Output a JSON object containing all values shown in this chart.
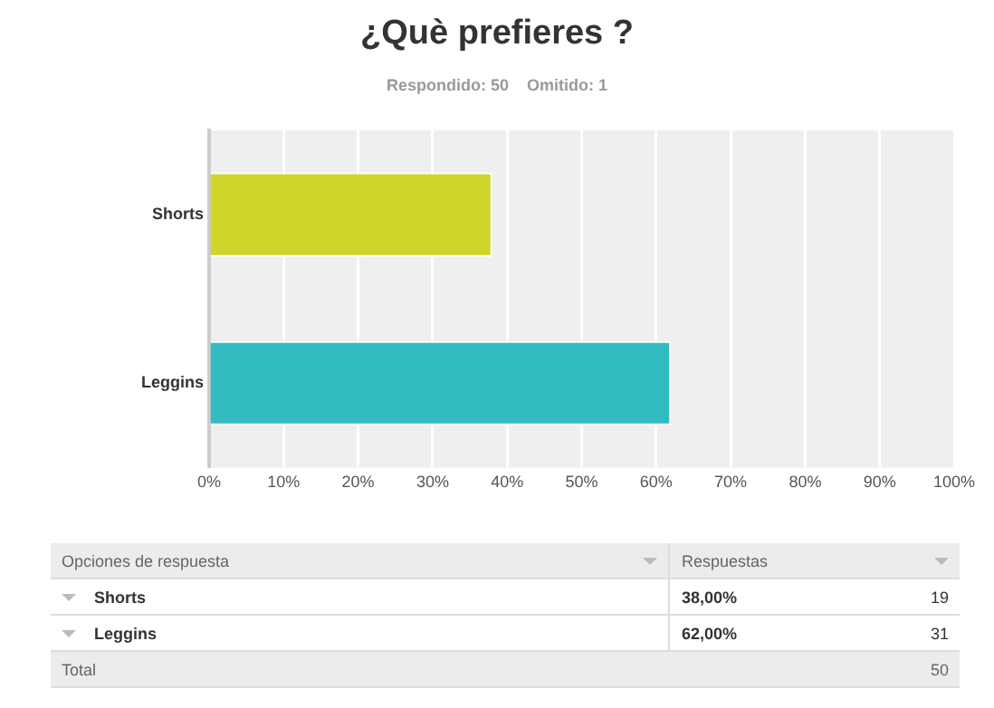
{
  "chart_data": {
    "type": "bar",
    "orientation": "horizontal",
    "title": "¿Què prefieres ?",
    "subtitle": "Respondido: 50    Omitido: 1",
    "categories": [
      "Shorts",
      "Leggins"
    ],
    "values": [
      38,
      62
    ],
    "colors": [
      "#d0d52a",
      "#33bcbf"
    ],
    "xlim": [
      0,
      100
    ],
    "xticks": [
      {
        "value": 0,
        "label": "0%"
      },
      {
        "value": 10,
        "label": "10%"
      },
      {
        "value": 20,
        "label": "20%"
      },
      {
        "value": 30,
        "label": "30%"
      },
      {
        "value": 40,
        "label": "40%"
      },
      {
        "value": 50,
        "label": "50%"
      },
      {
        "value": 60,
        "label": "60%"
      },
      {
        "value": 70,
        "label": "70%"
      },
      {
        "value": 80,
        "label": "80%"
      },
      {
        "value": 90,
        "label": "90%"
      },
      {
        "value": 100,
        "label": "100%"
      }
    ],
    "grid": "x",
    "annotations": [
      "Opciones de respuesta",
      "Respuestas",
      "38,00%",
      "19",
      "62,00%",
      "31",
      "Total",
      "50"
    ]
  }
}
